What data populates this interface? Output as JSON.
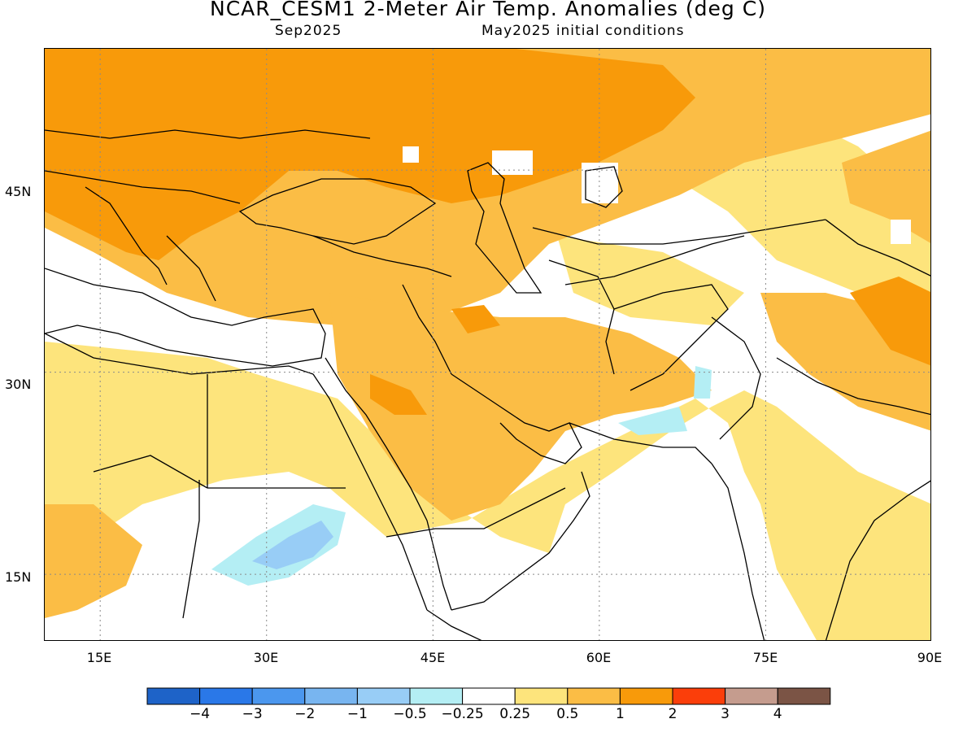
{
  "header": {
    "title": "NCAR_CESM1 2-Meter Air Temp. Anomalies (deg C)",
    "valid_month": "Sep2025",
    "init_text": "May2025 initial conditions"
  },
  "map": {
    "projection": "lat-lon",
    "extent": {
      "lon_min": 10,
      "lon_max": 90,
      "lat_min": 10,
      "lat_max": 54
    },
    "lat_labels": [
      "45N",
      "30N",
      "15N"
    ],
    "lon_labels": [
      "15E",
      "30E",
      "45E",
      "60E",
      "75E",
      "90E"
    ],
    "gridlines": "dotted"
  },
  "legend": {
    "colors": [
      "#1e63c8",
      "#2a78e8",
      "#4b97ee",
      "#78b5f0",
      "#98cdf6",
      "#b4eef4",
      "#ffffff",
      "#fde47c",
      "#fbbd45",
      "#f89a0a",
      "#fb3e0a",
      "#c59c8e",
      "#7b5445"
    ],
    "labels": [
      "−4",
      "−3",
      "−2",
      "−1",
      "−0.5",
      "−0.25",
      "0.25",
      "0.5",
      "1",
      "2",
      "3",
      "4"
    ]
  }
}
